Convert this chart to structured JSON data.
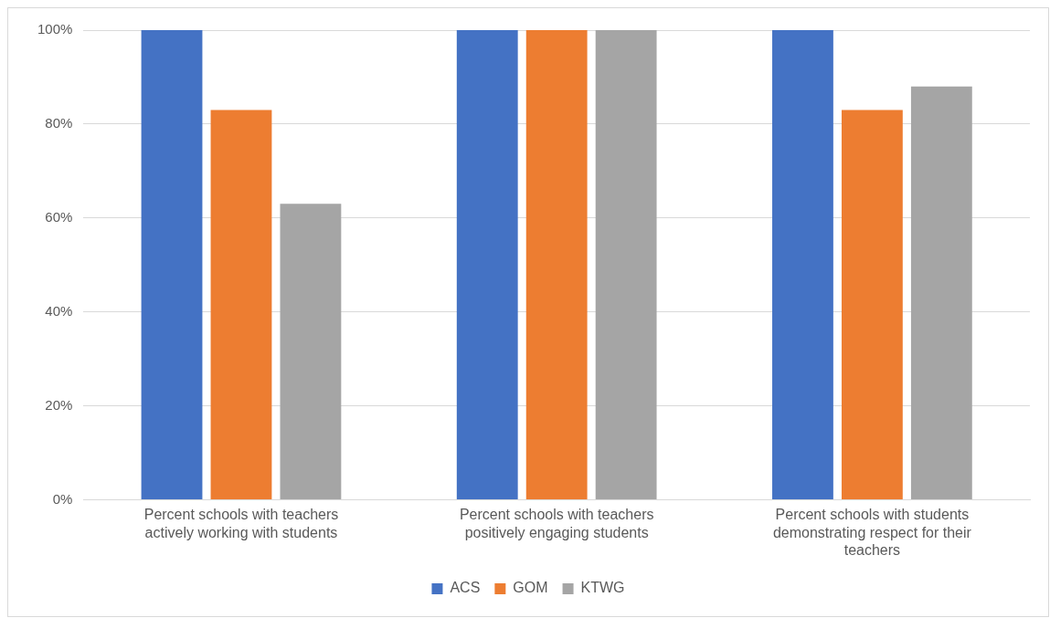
{
  "chart_data": {
    "type": "bar",
    "categories": [
      "Percent schools with teachers actively working with students",
      "Percent schools with teachers positively engaging students",
      "Percent schools with students demonstrating respect for their teachers"
    ],
    "series": [
      {
        "name": "ACS",
        "color": "#4472c4",
        "values": [
          100,
          100,
          100
        ]
      },
      {
        "name": "GOM",
        "color": "#ed7d31",
        "values": [
          83,
          100,
          83
        ]
      },
      {
        "name": "KTWG",
        "color": "#a5a5a5",
        "values": [
          63,
          100,
          88
        ]
      }
    ],
    "ylim": [
      0,
      100
    ],
    "yticks": [
      {
        "value": 0,
        "label": "0%"
      },
      {
        "value": 20,
        "label": "20%"
      },
      {
        "value": 40,
        "label": "40%"
      },
      {
        "value": 60,
        "label": "60%"
      },
      {
        "value": 80,
        "label": "80%"
      },
      {
        "value": 100,
        "label": "100%"
      }
    ],
    "grid": "y",
    "legend": "bottom"
  }
}
